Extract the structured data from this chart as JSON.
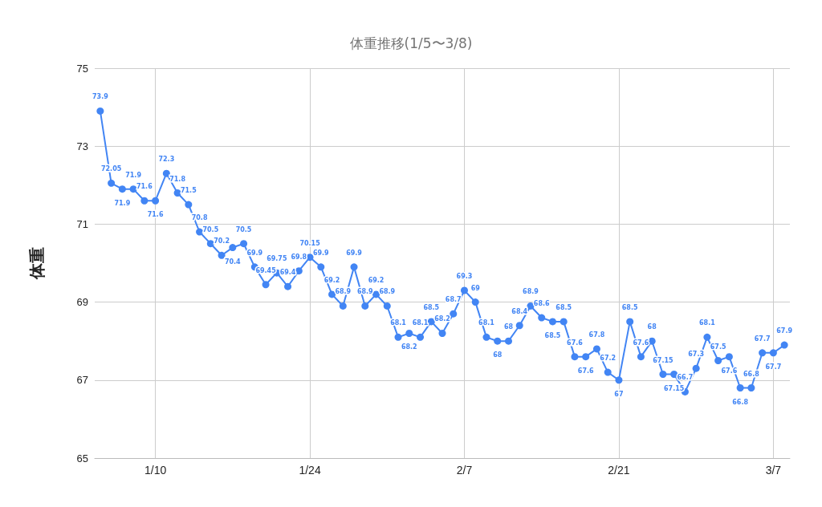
{
  "chart_data": {
    "type": "line",
    "title": "体重推移(1/5〜3/8)",
    "ylabel": "体重",
    "x": [
      "--01-05",
      "--01-06",
      "--01-07",
      "--01-08",
      "--01-09",
      "--01-10",
      "--01-11",
      "--01-12",
      "--01-13",
      "--01-14",
      "--01-15",
      "--01-16",
      "--01-17",
      "--01-18",
      "--01-19",
      "--01-20",
      "--01-21",
      "--01-22",
      "--01-23",
      "--01-24",
      "--01-25",
      "--01-26",
      "--01-27",
      "--01-28",
      "--01-29",
      "--01-30",
      "--01-31",
      "--02-01",
      "--02-02",
      "--02-03",
      "--02-04",
      "--02-05",
      "--02-06",
      "--02-07",
      "--02-08",
      "--02-09",
      "--02-10",
      "--02-11",
      "--02-12",
      "--02-13",
      "--02-14",
      "--02-15",
      "--02-16",
      "--02-17",
      "--02-18",
      "--02-19",
      "--02-20",
      "--02-21",
      "--02-22",
      "--02-23",
      "--02-24",
      "--02-25",
      "--02-26",
      "--02-27",
      "--02-28",
      "--03-01",
      "--03-02",
      "--03-03",
      "--03-04",
      "--03-05",
      "--03-06",
      "--03-07",
      "--03-08"
    ],
    "series": [
      {
        "color": "#4285f4",
        "values": [
          73.9,
          72.05,
          71.9,
          71.9,
          71.6,
          71.6,
          72.3,
          71.8,
          71.5,
          70.8,
          70.5,
          70.2,
          70.4,
          70.5,
          69.9,
          69.45,
          69.75,
          69.4,
          69.8,
          70.15,
          69.9,
          69.2,
          68.9,
          69.9,
          68.9,
          69.2,
          68.9,
          68.1,
          68.2,
          68.1,
          68.5,
          68.2,
          68.7,
          69.3,
          69,
          68.1,
          68,
          68,
          68.4,
          68.9,
          68.6,
          68.5,
          68.5,
          67.6,
          67.6,
          67.8,
          67.2,
          67,
          68.5,
          67.6,
          68,
          67.15,
          67.15,
          66.7,
          67.3,
          68.1,
          67.5,
          67.6,
          66.8,
          66.8,
          67.7,
          67.7,
          67.9
        ]
      }
    ],
    "xlim": [
      "--01-04T12:00",
      "--03-08T12:00"
    ],
    "xticks": [
      {
        "value": "--01-10",
        "label": "1/10"
      },
      {
        "value": "--01-24",
        "label": "1/24"
      },
      {
        "value": "--02-07",
        "label": "2/7"
      },
      {
        "value": "--02-21",
        "label": "2/21"
      },
      {
        "value": "--03-07",
        "label": "3/7"
      }
    ],
    "ylim": [
      65,
      75
    ],
    "yticks": [
      65,
      67,
      69,
      71,
      73,
      75
    ],
    "grid": true,
    "marker": "circle",
    "line_style": "solid",
    "data_labels": true
  }
}
